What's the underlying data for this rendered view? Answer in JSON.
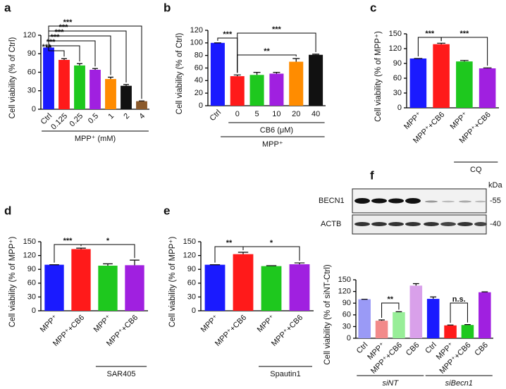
{
  "chart_data": [
    {
      "type": "bar",
      "panel": "a",
      "ylabel": "Cell viability (% of Ctrl)",
      "categories": [
        "Ctrl",
        "0.125",
        "0.25",
        "0.5",
        "1",
        "2",
        "4"
      ],
      "values": [
        100,
        80,
        71,
        64,
        49,
        38,
        13
      ],
      "errors": [
        1,
        2,
        3,
        2,
        3,
        2,
        0.5
      ],
      "colors": [
        "#1a1aff",
        "#ff1a1a",
        "#1ec81e",
        "#a020e0",
        "#ff8c00",
        "#111111",
        "#8b5a2b"
      ],
      "ylim": [
        0,
        120
      ],
      "yticks": [
        0,
        30,
        60,
        90,
        120
      ],
      "groups": [
        "MPP⁺ (mM)"
      ],
      "annotations": [
        "***",
        "***",
        "***",
        "***",
        "***",
        "***"
      ]
    },
    {
      "type": "bar",
      "panel": "b",
      "ylabel": "Cell viability (% of Ctrl)",
      "categories": [
        "Ctrl",
        "0",
        "5",
        "10",
        "20",
        "40"
      ],
      "values": [
        100,
        47,
        49,
        51,
        70,
        81
      ],
      "errors": [
        0,
        2,
        4,
        2,
        5,
        1
      ],
      "colors": [
        "#1a1aff",
        "#ff1a1a",
        "#1ec81e",
        "#a020e0",
        "#ff8c00",
        "#111111"
      ],
      "ylim": [
        0,
        120
      ],
      "yticks": [
        0,
        20,
        40,
        60,
        80,
        100,
        120
      ],
      "groups": [
        "CB6 (μM)",
        "MPP⁺"
      ],
      "annotations": [
        "***",
        "**",
        "***"
      ]
    },
    {
      "type": "bar",
      "panel": "c",
      "ylabel": "Cell viability (% of MPP⁺)",
      "categories": [
        "MPP⁺",
        "MPP⁺+CB6",
        "MPP⁺",
        "MPP⁺+CB6"
      ],
      "values": [
        100,
        129,
        94,
        80
      ],
      "errors": [
        0,
        2,
        2,
        1
      ],
      "colors": [
        "#1a1aff",
        "#ff1a1a",
        "#1ec81e",
        "#a020e0"
      ],
      "ylim": [
        0,
        150
      ],
      "yticks": [
        0,
        30,
        60,
        90,
        120,
        150
      ],
      "groups": [
        "CQ"
      ],
      "annotations": [
        "***",
        "***"
      ]
    },
    {
      "type": "bar",
      "panel": "d",
      "ylabel": "Cell viability (% of MPP⁺)",
      "categories": [
        "MPP⁺",
        "MPP⁺+CB6",
        "MPP⁺",
        "MPP⁺+CB6"
      ],
      "values": [
        100,
        134,
        98,
        99
      ],
      "errors": [
        0,
        2,
        4,
        11
      ],
      "colors": [
        "#1a1aff",
        "#ff1a1a",
        "#1ec81e",
        "#a020e0"
      ],
      "ylim": [
        0,
        150
      ],
      "yticks": [
        0,
        30,
        60,
        90,
        120,
        150
      ],
      "groups": [
        "SAR405"
      ],
      "annotations": [
        "***",
        "*"
      ]
    },
    {
      "type": "bar",
      "panel": "e",
      "ylabel": "Cell viability (% of MPP⁺)",
      "categories": [
        "MPP⁺",
        "MPP⁺+CB6",
        "MPP⁺",
        "MPP⁺+CB6"
      ],
      "values": [
        100,
        123,
        97,
        101
      ],
      "errors": [
        0,
        4,
        1,
        3
      ],
      "colors": [
        "#1a1aff",
        "#ff1a1a",
        "#1ec81e",
        "#a020e0"
      ],
      "ylim": [
        0,
        150
      ],
      "yticks": [
        0,
        30,
        60,
        90,
        120,
        150
      ],
      "groups": [
        "Spautin1"
      ],
      "annotations": [
        "**",
        "*"
      ]
    },
    {
      "type": "bar",
      "panel": "f",
      "ylabel": "Cell viability (% of siNT-Ctrl)",
      "categories": [
        "Ctrl",
        "MPP⁺",
        "MPP⁺+CB6",
        "CB6",
        "Ctrl",
        "MPP⁺",
        "MPP⁺+CB6",
        "CB6"
      ],
      "values": [
        100,
        45,
        67,
        135,
        101,
        33,
        34,
        118
      ],
      "errors": [
        0,
        2,
        1,
        5,
        5,
        1,
        1,
        1
      ],
      "colors": [
        "#9a9af6",
        "#f28a8a",
        "#98ee98",
        "#d9a0ea",
        "#1a1aff",
        "#ff1a1a",
        "#1ec81e",
        "#a020e0"
      ],
      "ylim": [
        0,
        150
      ],
      "yticks": [
        0,
        30,
        60,
        90,
        120,
        150
      ],
      "groups": [
        "siNT",
        "siBecn1"
      ],
      "annotations": [
        "**",
        "n.s."
      ]
    }
  ],
  "blot": {
    "unit": "kDa",
    "proteins": [
      "BECN1",
      "ACTB"
    ],
    "markers": [
      "-55",
      "-40"
    ]
  }
}
